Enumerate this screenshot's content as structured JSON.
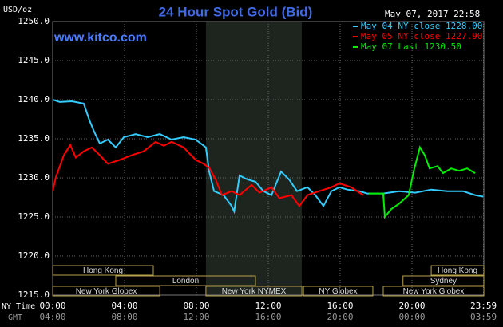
{
  "chart_data": {
    "type": "line",
    "title": "24 Hour Spot Gold (Bid)",
    "timestamp": "May 07, 2017 22:58",
    "watermark": "www.kitco.com",
    "y_label": "USD/oz",
    "x_label_ny": "NY Time",
    "x_label_gmt": "GMT",
    "xlim": [
      0,
      24
    ],
    "ylim": [
      1215,
      1250
    ],
    "yticks": [
      {
        "value": 1215,
        "label": "1215.0"
      },
      {
        "value": 1220,
        "label": "1220.0"
      },
      {
        "value": 1225,
        "label": "1225.0"
      },
      {
        "value": 1230,
        "label": "1230.0"
      },
      {
        "value": 1235,
        "label": "1235.0"
      },
      {
        "value": 1240,
        "label": "1240.0"
      },
      {
        "value": 1245,
        "label": "1245.0"
      },
      {
        "value": 1250,
        "label": "1250.0"
      }
    ],
    "xticks": [
      {
        "value": 0,
        "label": "00:00"
      },
      {
        "value": 4,
        "label": "04:00"
      },
      {
        "value": 8,
        "label": "08:00"
      },
      {
        "value": 12,
        "label": "12:00"
      },
      {
        "value": 16,
        "label": "16:00"
      },
      {
        "value": 20,
        "label": "20:00"
      },
      {
        "value": 23.98,
        "label": "23:59"
      }
    ],
    "gmt_labels": [
      "04:00",
      "08:00",
      "12:00",
      "16:00",
      "20:00",
      "00:00",
      "03:59"
    ],
    "grid": true,
    "series": [
      {
        "name": "May 04 NY close 1228.00",
        "color": "#33ccff",
        "x": [
          0,
          0.4,
          1.07,
          1.73,
          2.04,
          2.31,
          2.62,
          3.07,
          3.51,
          3.96,
          4.62,
          5.29,
          5.96,
          6.62,
          7.29,
          7.96,
          8.53,
          8.71,
          8.98,
          9.51,
          9.96,
          10.1,
          10.4,
          10.84,
          11.29,
          11.73,
          12.18,
          12.71,
          13.16,
          13.6,
          14.18,
          14.62,
          15.07,
          15.51,
          15.96,
          16.4,
          17.07,
          17.51,
          18.4,
          19.29,
          20.18,
          21.07,
          21.96,
          22.84,
          23.51,
          23.96
        ],
        "values": [
          1240.0,
          1239.7,
          1239.8,
          1239.5,
          1237.4,
          1235.9,
          1234.4,
          1234.9,
          1233.9,
          1235.2,
          1235.6,
          1235.2,
          1235.6,
          1234.9,
          1235.2,
          1234.9,
          1233.9,
          1230.8,
          1228.3,
          1227.8,
          1226.4,
          1225.7,
          1230.3,
          1229.8,
          1229.5,
          1228.3,
          1227.8,
          1230.8,
          1229.8,
          1228.3,
          1228.8,
          1227.8,
          1226.4,
          1228.3,
          1228.8,
          1228.5,
          1228.3,
          1228.0,
          1228.0,
          1228.3,
          1228.1,
          1228.5,
          1228.3,
          1228.3,
          1227.8,
          1227.6
        ]
      },
      {
        "name": "May 05 NY close 1227.90",
        "color": "#ff0000",
        "x": [
          0,
          0.18,
          0.62,
          0.98,
          1.29,
          1.73,
          2.18,
          2.62,
          3.07,
          3.73,
          4.4,
          5.07,
          5.73,
          6.18,
          6.62,
          7.29,
          7.96,
          8.4,
          8.71,
          9.07,
          9.42,
          9.96,
          10.4,
          11.07,
          11.51,
          12.18,
          12.62,
          13.29,
          13.73,
          14.18,
          14.84,
          15.51,
          15.96,
          16.62,
          17.29
        ],
        "values": [
          1228.3,
          1230.1,
          1232.9,
          1234.2,
          1232.6,
          1233.4,
          1233.9,
          1232.9,
          1231.8,
          1232.3,
          1232.9,
          1233.4,
          1234.6,
          1234.1,
          1234.6,
          1233.9,
          1232.3,
          1231.8,
          1231.3,
          1229.8,
          1227.8,
          1228.3,
          1227.8,
          1229.1,
          1228.1,
          1228.8,
          1227.4,
          1227.8,
          1226.4,
          1227.8,
          1228.3,
          1228.8,
          1229.3,
          1228.8,
          1227.8
        ]
      },
      {
        "name": "May 07 Last 1230.50",
        "color": "#00ee00",
        "x": [
          17.6,
          18.4,
          18.49,
          18.84,
          19.29,
          19.82,
          20.09,
          20.44,
          20.71,
          20.98,
          21.42,
          21.73,
          22.18,
          22.62,
          23.07,
          23.51
        ],
        "values": [
          1228.0,
          1228.0,
          1225.0,
          1226.0,
          1226.7,
          1227.8,
          1230.8,
          1233.9,
          1232.9,
          1231.2,
          1231.5,
          1230.6,
          1231.2,
          1230.9,
          1231.2,
          1230.6
        ]
      }
    ],
    "sessions": [
      {
        "label": "Hong Kong",
        "start": 0,
        "end": 5.6
      },
      {
        "label": "London",
        "start": 3.51,
        "end": 11.29
      },
      {
        "label": "New York Globex",
        "start": 0,
        "end": 5.96
      },
      {
        "label": "New York NYMEX",
        "start": 8.53,
        "end": 13.87
      },
      {
        "label": "NY Globex",
        "start": 13.96,
        "end": 17.82
      },
      {
        "label": "Hong Kong",
        "start": 21.07,
        "end": 24
      },
      {
        "label": "Sydney",
        "start": 19.5,
        "end": 24
      },
      {
        "label": "New York Globex",
        "start": 18.4,
        "end": 24
      }
    ]
  }
}
